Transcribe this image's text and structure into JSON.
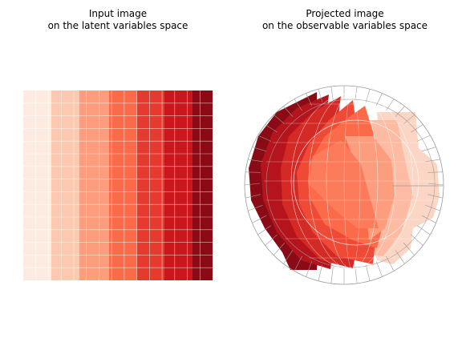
{
  "panels": [
    {
      "title_line1": "Input image",
      "title_line2": "on the latent variables space"
    },
    {
      "title_line1": "Projected image",
      "title_line2": "on the observable variables space"
    }
  ],
  "colors": {
    "bands": [
      "#fdeae0",
      "#fcc9b0",
      "#fc9d7e",
      "#fb6b4a",
      "#e53a30",
      "#c9171d",
      "#8a0b16"
    ],
    "grid": "#ffffff",
    "wire": "#9a9a9a"
  }
}
